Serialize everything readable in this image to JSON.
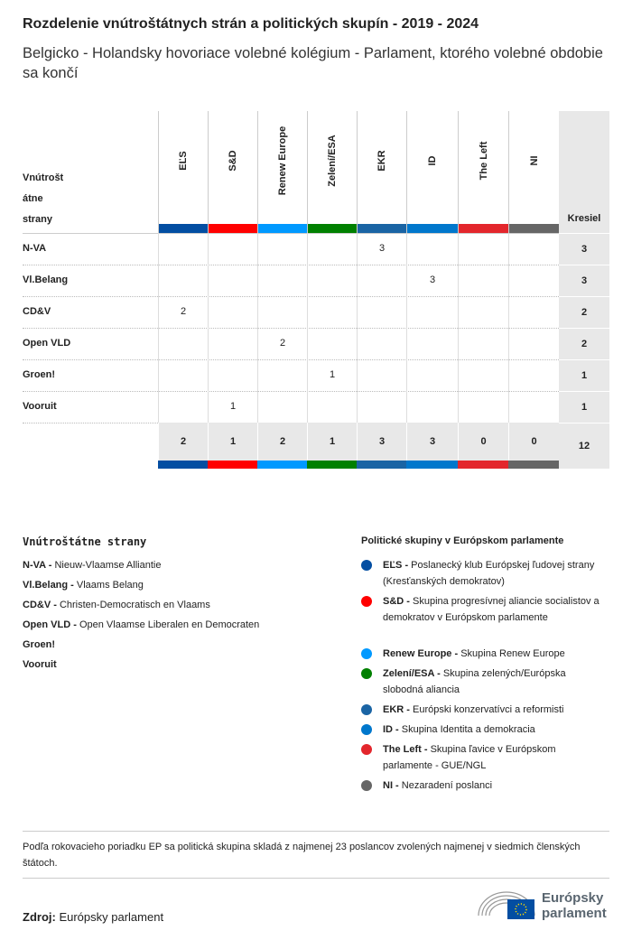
{
  "title": "Rozdelenie vnútroštátnych strán a politických skupín - 2019 - 2024",
  "subtitle": "Belgicko - Holandsky hovoriace volebné kolégium - Parlament, ktorého volebné obdobie sa končí",
  "table": {
    "row_header": "Vnútrošt\nátne\nstrany",
    "seats_header": "Kresiel",
    "groups": [
      {
        "name": "EĽS",
        "color": "#034ea2"
      },
      {
        "name": "S&D",
        "color": "#ff0000"
      },
      {
        "name": "Renew Europe",
        "color": "#0099ff"
      },
      {
        "name": "Zelení/ESA",
        "color": "#008000"
      },
      {
        "name": "EKR",
        "color": "#1a64a4"
      },
      {
        "name": "ID",
        "color": "#0077cc"
      },
      {
        "name": "The Left",
        "color": "#e3262c"
      },
      {
        "name": "NI",
        "color": "#666666"
      }
    ],
    "rows": [
      {
        "party": "N-VA",
        "values": [
          "",
          "",
          "",
          "",
          "3",
          "",
          "",
          ""
        ],
        "total": "3"
      },
      {
        "party": "Vl.Belang",
        "values": [
          "",
          "",
          "",
          "",
          "",
          "3",
          "",
          ""
        ],
        "total": "3"
      },
      {
        "party": "CD&V",
        "values": [
          "2",
          "",
          "",
          "",
          "",
          "",
          "",
          ""
        ],
        "total": "2"
      },
      {
        "party": "Open VLD",
        "values": [
          "",
          "",
          "2",
          "",
          "",
          "",
          "",
          ""
        ],
        "total": "2"
      },
      {
        "party": "Groen!",
        "values": [
          "",
          "",
          "",
          "1",
          "",
          "",
          "",
          ""
        ],
        "total": "1"
      },
      {
        "party": "Vooruit",
        "values": [
          "",
          "1",
          "",
          "",
          "",
          "",
          "",
          ""
        ],
        "total": "1"
      }
    ],
    "totals": [
      "2",
      "1",
      "2",
      "1",
      "3",
      "3",
      "0",
      "0"
    ],
    "grand_total": "12"
  },
  "legend_parties": {
    "title": "Vnútroštátne strany",
    "items": [
      {
        "abbr": "N-VA -",
        "name": "Nieuw-Vlaamse Alliantie"
      },
      {
        "abbr": "Vl.Belang -",
        "name": "Vlaams Belang"
      },
      {
        "abbr": "CD&V -",
        "name": "Christen-Democratisch en Vlaams"
      },
      {
        "abbr": "Open VLD -",
        "name": "Open Vlaamse Liberalen en Democraten"
      },
      {
        "abbr": "Groen!",
        "name": ""
      },
      {
        "abbr": "Vooruit",
        "name": ""
      }
    ]
  },
  "legend_groups": {
    "title": "Politické skupiny v Európskom parlamente",
    "items": [
      {
        "abbr": "EĽS -",
        "name": "Poslanecký klub Európskej ľudovej strany (Kresťanských demokratov)",
        "color": "#034ea2"
      },
      {
        "abbr": "S&D -",
        "name": "Skupina progresívnej aliancie socialistov a demokratov v Európskom parlamente",
        "color": "#ff0000"
      },
      {
        "abbr": "Renew Europe -",
        "name": "Skupina Renew Europe",
        "color": "#0099ff"
      },
      {
        "abbr": "Zelení/ESA -",
        "name": "Skupina zelených/Európska slobodná aliancia",
        "color": "#008000"
      },
      {
        "abbr": "EKR -",
        "name": "Európski konzervatívci a reformisti",
        "color": "#1a64a4"
      },
      {
        "abbr": "ID -",
        "name": "Skupina Identita a demokracia",
        "color": "#0077cc"
      },
      {
        "abbr": "The Left -",
        "name": "Skupina ľavice v Európskom parlamente - GUE/NGL",
        "color": "#e3262c"
      },
      {
        "abbr": "NI -",
        "name": "Nezaradení poslanci",
        "color": "#666666"
      }
    ]
  },
  "note": "Podľa rokovacieho poriadku EP sa politická skupina skladá z najmenej 23 poslancov zvolených najmenej v siedmich členských štátoch.",
  "source": {
    "label": "Zdroj:",
    "value": "Európsky parlament"
  },
  "logo": {
    "text": "Európsky parlament"
  }
}
